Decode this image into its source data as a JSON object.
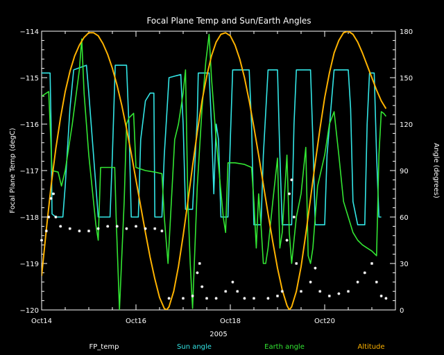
{
  "chart_data": {
    "type": "line",
    "title": "Focal Plane Temp and Sun/Earth Angles",
    "xlabel": "2005",
    "ylabel_left": "Focal Plane Temp (degC)",
    "ylabel_right": "Angle (degrees)",
    "xlim": [
      14.0,
      21.5
    ],
    "ylim_left": [
      -120,
      -114
    ],
    "ylim_right": [
      0,
      180
    ],
    "x_ticks": [
      {
        "value": 14,
        "label": "Oct14"
      },
      {
        "value": 16,
        "label": "Oct16"
      },
      {
        "value": 18,
        "label": "Oct18"
      },
      {
        "value": 20,
        "label": "Oct20"
      }
    ],
    "y_ticks_left": [
      -120,
      -119,
      -118,
      -117,
      -116,
      -115,
      -114
    ],
    "y_ticks_right": [
      0,
      30,
      60,
      90,
      120,
      150,
      180
    ],
    "legend": [
      {
        "name": "FP_temp",
        "color": "#ffffff"
      },
      {
        "name": "Sun angle",
        "color": "#33e6e6"
      },
      {
        "name": "Earth angle",
        "color": "#33e633"
      },
      {
        "name": "Altitude",
        "color": "#ffb300"
      }
    ],
    "series": [
      {
        "name": "FP_temp",
        "axis": "left",
        "style": "points",
        "color": "#ffffff",
        "points": [
          [
            14.0,
            -118.5
          ],
          [
            14.1,
            -118.3
          ],
          [
            14.15,
            -118.0
          ],
          [
            14.2,
            -117.6
          ],
          [
            14.25,
            -117.5
          ],
          [
            14.3,
            -118.0
          ],
          [
            14.4,
            -118.2
          ],
          [
            14.6,
            -118.25
          ],
          [
            14.8,
            -118.3
          ],
          [
            15.0,
            -118.3
          ],
          [
            15.2,
            -118.25
          ],
          [
            15.4,
            -118.2
          ],
          [
            15.6,
            -118.2
          ],
          [
            15.8,
            -118.25
          ],
          [
            16.0,
            -118.2
          ],
          [
            16.2,
            -118.25
          ],
          [
            16.4,
            -118.25
          ],
          [
            16.55,
            -118.3
          ],
          [
            16.7,
            -119.75
          ],
          [
            17.0,
            -119.75
          ],
          [
            17.2,
            -119.7
          ],
          [
            17.3,
            -119.2
          ],
          [
            17.35,
            -119.0
          ],
          [
            17.4,
            -119.5
          ],
          [
            17.5,
            -119.75
          ],
          [
            17.7,
            -119.75
          ],
          [
            17.9,
            -119.6
          ],
          [
            18.05,
            -119.4
          ],
          [
            18.15,
            -119.6
          ],
          [
            18.3,
            -119.75
          ],
          [
            18.5,
            -119.75
          ],
          [
            18.8,
            -119.75
          ],
          [
            19.0,
            -119.7
          ],
          [
            19.1,
            -119.6
          ],
          [
            19.2,
            -118.5
          ],
          [
            19.25,
            -117.5
          ],
          [
            19.3,
            -117.2
          ],
          [
            19.35,
            -118.0
          ],
          [
            19.4,
            -119.0
          ],
          [
            19.5,
            -119.6
          ],
          [
            19.7,
            -119.4
          ],
          [
            19.8,
            -119.1
          ],
          [
            19.9,
            -119.6
          ],
          [
            20.1,
            -119.7
          ],
          [
            20.3,
            -119.65
          ],
          [
            20.5,
            -119.6
          ],
          [
            20.7,
            -119.4
          ],
          [
            20.85,
            -119.2
          ],
          [
            21.0,
            -119.0
          ],
          [
            21.1,
            -119.4
          ],
          [
            21.2,
            -119.7
          ],
          [
            21.3,
            -119.75
          ]
        ]
      },
      {
        "name": "Sun angle",
        "axis": "right",
        "style": "line",
        "color": "#33e6e6",
        "points": [
          [
            14.0,
            153
          ],
          [
            14.18,
            153
          ],
          [
            14.2,
            120
          ],
          [
            14.22,
            62
          ],
          [
            14.3,
            60
          ],
          [
            14.45,
            60
          ],
          [
            14.5,
            80
          ],
          [
            14.6,
            130
          ],
          [
            14.68,
            155
          ],
          [
            14.95,
            158
          ],
          [
            15.0,
            140
          ],
          [
            15.1,
            100
          ],
          [
            15.2,
            60
          ],
          [
            15.45,
            60
          ],
          [
            15.5,
            100
          ],
          [
            15.56,
            158
          ],
          [
            15.8,
            158
          ],
          [
            15.85,
            120
          ],
          [
            15.9,
            60
          ],
          [
            16.05,
            60
          ],
          [
            16.1,
            110
          ],
          [
            16.2,
            135
          ],
          [
            16.3,
            140
          ],
          [
            16.38,
            140
          ],
          [
            16.4,
            60
          ],
          [
            16.55,
            60
          ],
          [
            16.6,
            100
          ],
          [
            16.7,
            150
          ],
          [
            16.95,
            152
          ],
          [
            17.0,
            120
          ],
          [
            17.05,
            65
          ],
          [
            17.2,
            65
          ],
          [
            17.25,
            95
          ],
          [
            17.3,
            125
          ],
          [
            17.32,
            153
          ],
          [
            17.55,
            153
          ],
          [
            17.6,
            120
          ],
          [
            17.65,
            75
          ],
          [
            17.7,
            120
          ],
          [
            17.75,
            110
          ],
          [
            17.8,
            60
          ],
          [
            17.95,
            60
          ],
          [
            18.0,
            110
          ],
          [
            18.05,
            155
          ],
          [
            18.4,
            155
          ],
          [
            18.45,
            120
          ],
          [
            18.5,
            55
          ],
          [
            18.65,
            55
          ],
          [
            18.7,
            100
          ],
          [
            18.8,
            155
          ],
          [
            19.0,
            155
          ],
          [
            19.05,
            100
          ],
          [
            19.1,
            55
          ],
          [
            19.3,
            55
          ],
          [
            19.35,
            120
          ],
          [
            19.4,
            155
          ],
          [
            19.7,
            155
          ],
          [
            19.75,
            110
          ],
          [
            19.8,
            55
          ],
          [
            20.0,
            55
          ],
          [
            20.05,
            100
          ],
          [
            20.2,
            155
          ],
          [
            20.5,
            155
          ],
          [
            20.55,
            130
          ],
          [
            20.6,
            70
          ],
          [
            20.7,
            55
          ],
          [
            20.85,
            55
          ],
          [
            20.9,
            120
          ],
          [
            20.95,
            153
          ],
          [
            21.05,
            153
          ],
          [
            21.1,
            100
          ],
          [
            21.15,
            60
          ],
          [
            21.2,
            60
          ]
        ]
      },
      {
        "name": "Earth angle",
        "axis": "right",
        "style": "line",
        "color": "#33e633",
        "points": [
          [
            14.0,
            138
          ],
          [
            14.1,
            140
          ],
          [
            14.15,
            141
          ],
          [
            14.18,
            120
          ],
          [
            14.22,
            90
          ],
          [
            14.35,
            89
          ],
          [
            14.42,
            80
          ],
          [
            14.5,
            90
          ],
          [
            14.65,
            120
          ],
          [
            14.8,
            155
          ],
          [
            14.85,
            175
          ],
          [
            14.9,
            140
          ],
          [
            15.0,
            100
          ],
          [
            15.15,
            55
          ],
          [
            15.2,
            45
          ],
          [
            15.25,
            92
          ],
          [
            15.45,
            92
          ],
          [
            15.55,
            92
          ],
          [
            15.58,
            60
          ],
          [
            15.65,
            0
          ],
          [
            15.75,
            70
          ],
          [
            15.8,
            120
          ],
          [
            15.85,
            124
          ],
          [
            15.95,
            127
          ],
          [
            16.0,
            92
          ],
          [
            16.2,
            90
          ],
          [
            16.4,
            89
          ],
          [
            16.55,
            88
          ],
          [
            16.6,
            60
          ],
          [
            16.68,
            30
          ],
          [
            16.75,
            70
          ],
          [
            16.82,
            110
          ],
          [
            16.9,
            120
          ],
          [
            17.0,
            140
          ],
          [
            17.05,
            155
          ],
          [
            17.1,
            70
          ],
          [
            17.15,
            30
          ],
          [
            17.2,
            1
          ],
          [
            17.3,
            80
          ],
          [
            17.4,
            130
          ],
          [
            17.48,
            160
          ],
          [
            17.55,
            178
          ],
          [
            17.6,
            150
          ],
          [
            17.7,
            110
          ],
          [
            17.85,
            60
          ],
          [
            17.9,
            50
          ],
          [
            17.95,
            95
          ],
          [
            18.1,
            95
          ],
          [
            18.3,
            94
          ],
          [
            18.45,
            92
          ],
          [
            18.5,
            70
          ],
          [
            18.55,
            40
          ],
          [
            18.6,
            75
          ],
          [
            18.65,
            55
          ],
          [
            18.7,
            30
          ],
          [
            18.75,
            30
          ],
          [
            18.8,
            40
          ],
          [
            18.9,
            70
          ],
          [
            19.0,
            98
          ],
          [
            19.05,
            40
          ],
          [
            19.1,
            50
          ],
          [
            19.2,
            100
          ],
          [
            19.25,
            50
          ],
          [
            19.3,
            30
          ],
          [
            19.4,
            60
          ],
          [
            19.5,
            75
          ],
          [
            19.6,
            105
          ],
          [
            19.65,
            35
          ],
          [
            19.7,
            30
          ],
          [
            19.75,
            40
          ],
          [
            19.85,
            80
          ],
          [
            20.0,
            100
          ],
          [
            20.1,
            120
          ],
          [
            20.2,
            128
          ],
          [
            20.3,
            100
          ],
          [
            20.4,
            70
          ],
          [
            20.5,
            60
          ],
          [
            20.6,
            50
          ],
          [
            20.7,
            45
          ],
          [
            20.8,
            42
          ],
          [
            20.9,
            40
          ],
          [
            21.0,
            38
          ],
          [
            21.1,
            35
          ],
          [
            21.15,
            100
          ],
          [
            21.2,
            128
          ],
          [
            21.25,
            127
          ],
          [
            21.3,
            125
          ]
        ]
      },
      {
        "name": "Altitude",
        "axis": "right",
        "style": "line",
        "color": "#ffb300",
        "points": [
          [
            14.0,
            22
          ],
          [
            14.1,
            52
          ],
          [
            14.2,
            80
          ],
          [
            14.3,
            104
          ],
          [
            14.4,
            124
          ],
          [
            14.5,
            141
          ],
          [
            14.6,
            154
          ],
          [
            14.7,
            164
          ],
          [
            14.8,
            171
          ],
          [
            14.9,
            176
          ],
          [
            15.0,
            179
          ],
          [
            15.1,
            179
          ],
          [
            15.2,
            177
          ],
          [
            15.3,
            172
          ],
          [
            15.4,
            165
          ],
          [
            15.5,
            156
          ],
          [
            15.6,
            145
          ],
          [
            15.7,
            132
          ],
          [
            15.8,
            117
          ],
          [
            15.9,
            101
          ],
          [
            16.0,
            84
          ],
          [
            16.1,
            67
          ],
          [
            16.2,
            50
          ],
          [
            16.3,
            34
          ],
          [
            16.4,
            20
          ],
          [
            16.5,
            8
          ],
          [
            16.6,
            1
          ],
          [
            16.65,
            0
          ],
          [
            16.7,
            2
          ],
          [
            16.8,
            12
          ],
          [
            16.9,
            28
          ],
          [
            17.0,
            48
          ],
          [
            17.1,
            70
          ],
          [
            17.2,
            93
          ],
          [
            17.3,
            115
          ],
          [
            17.4,
            135
          ],
          [
            17.5,
            151
          ],
          [
            17.6,
            164
          ],
          [
            17.7,
            173
          ],
          [
            17.8,
            178
          ],
          [
            17.9,
            179
          ],
          [
            18.0,
            177
          ],
          [
            18.1,
            171
          ],
          [
            18.2,
            162
          ],
          [
            18.3,
            150
          ],
          [
            18.4,
            135
          ],
          [
            18.5,
            118
          ],
          [
            18.6,
            100
          ],
          [
            18.7,
            81
          ],
          [
            18.8,
            62
          ],
          [
            18.9,
            44
          ],
          [
            19.0,
            27
          ],
          [
            19.1,
            13
          ],
          [
            19.2,
            3
          ],
          [
            19.25,
            0
          ],
          [
            19.3,
            2
          ],
          [
            19.4,
            12
          ],
          [
            19.5,
            28
          ],
          [
            19.6,
            49
          ],
          [
            19.7,
            72
          ],
          [
            19.8,
            95
          ],
          [
            19.9,
            117
          ],
          [
            20.0,
            137
          ],
          [
            20.1,
            153
          ],
          [
            20.2,
            166
          ],
          [
            20.3,
            174
          ],
          [
            20.4,
            179
          ],
          [
            20.5,
            180
          ],
          [
            20.6,
            178
          ],
          [
            20.7,
            173
          ],
          [
            20.8,
            166
          ],
          [
            20.9,
            158
          ],
          [
            21.0,
            150
          ],
          [
            21.1,
            142
          ],
          [
            21.2,
            135
          ],
          [
            21.3,
            130
          ]
        ]
      }
    ]
  }
}
